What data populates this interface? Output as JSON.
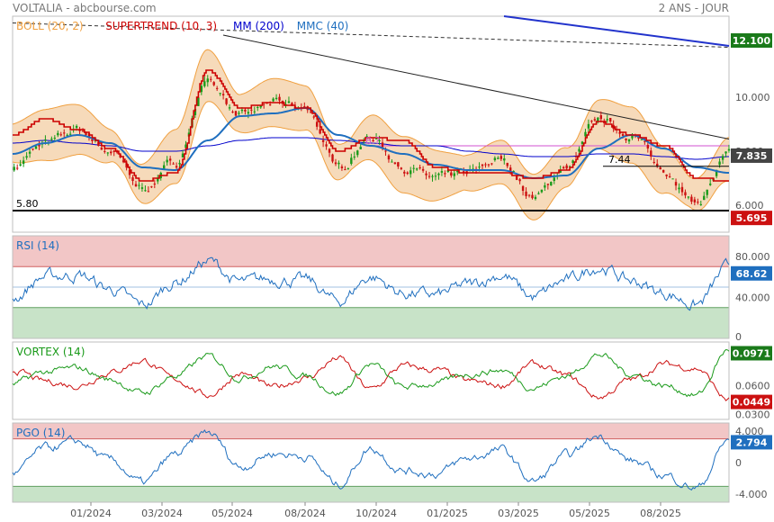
{
  "header": {
    "instrument": "VOLTALIA - abcbourse.com",
    "period": "2 ANS - JOUR"
  },
  "colors": {
    "boll": "#f0a040",
    "boll_fill": "#f5d3ae",
    "supertrend": "#cc0000",
    "mm200": "#0000cc",
    "mmc40": "#1f6fbf",
    "price_up": "#1a9a1a",
    "price_down": "#cc1111",
    "rsi": "#1f6fbf",
    "vortex_plus": "#1a9a1a",
    "vortex_minus": "#cc1111",
    "pgo": "#1f6fbf",
    "overbought_zone": "#f2c6c6",
    "oversold_zone": "#c8e3c8",
    "badge_blue": "#1f6fbf",
    "badge_dark": "#444444",
    "badge_green": "#1a7a1a",
    "badge_red": "#cc1111"
  },
  "x_axis": {
    "tick_labels": [
      "01/2024",
      "03/2024",
      "05/2024",
      "08/2024",
      "10/2024",
      "01/2025",
      "03/2025",
      "05/2025",
      "08/2025"
    ]
  },
  "chart_data": [
    {
      "type": "line",
      "panel": "price",
      "legend": [
        {
          "label": "BOLL (20, 2)",
          "color": "#f0a040"
        },
        {
          "label": "SUPERTREND (10, 3)",
          "color": "#cc0000"
        },
        {
          "label": "MM (200)",
          "color": "#0000cc"
        },
        {
          "label": "MMC (40)",
          "color": "#1f6fbf"
        }
      ],
      "y_ticks": [
        "12.100",
        "10.000",
        "8.000",
        "6.000"
      ],
      "ylim": [
        5.0,
        13.0
      ],
      "x": [
        "11/2023",
        "12/2023",
        "01/2024",
        "02/2024",
        "03/2024",
        "04/2024",
        "05/2024",
        "06/2024",
        "07/2024",
        "08/2024",
        "09/2024",
        "10/2024",
        "11/2024",
        "12/2024",
        "01/2025",
        "02/2025",
        "03/2025",
        "04/2025",
        "05/2025",
        "06/2025",
        "07/2025",
        "08/2025",
        "09/2025"
      ],
      "series": [
        {
          "name": "BOLL (20, 2)",
          "values": [
            8.3,
            8.6,
            8.8,
            8.2,
            6.8,
            7.8,
            10.8,
            9.4,
            9.8,
            9.6,
            7.6,
            8.5,
            7.5,
            7.1,
            7.2,
            7.6,
            6.3,
            7.4,
            9.0,
            8.6,
            7.3,
            6.4,
            7.7
          ]
        },
        {
          "name": "SUPERTREND (10, 3)",
          "values": [
            8.6,
            9.2,
            8.8,
            8.1,
            6.9,
            7.2,
            11.0,
            9.6,
            9.8,
            9.6,
            8.0,
            8.5,
            8.4,
            7.4,
            7.2,
            7.2,
            7.0,
            7.3,
            9.1,
            8.6,
            8.2,
            7.0,
            6.9
          ]
        },
        {
          "name": "MM (200)",
          "values": [
            8.3,
            8.4,
            8.3,
            8.2,
            8.0,
            8.0,
            8.2,
            8.4,
            8.5,
            8.5,
            8.4,
            8.3,
            8.2,
            8.2,
            8.0,
            7.9,
            7.8,
            7.8,
            7.9,
            7.9,
            7.8,
            7.7,
            7.8
          ]
        },
        {
          "name": "MMC (40)",
          "values": [
            7.9,
            8.3,
            8.6,
            8.3,
            7.4,
            7.3,
            8.4,
            9.3,
            9.4,
            9.6,
            8.6,
            8.2,
            7.9,
            7.5,
            7.3,
            7.3,
            7.0,
            7.1,
            8.1,
            8.6,
            8.1,
            7.4,
            7.2
          ]
        },
        {
          "name": "CLOSE",
          "values": [
            7.4,
            8.3,
            8.8,
            8.0,
            6.6,
            7.6,
            10.6,
            9.3,
            9.8,
            9.6,
            7.4,
            8.5,
            7.4,
            7.0,
            7.2,
            7.7,
            6.3,
            7.4,
            9.2,
            8.6,
            7.3,
            6.1,
            7.835
          ]
        }
      ],
      "annotations": [
        {
          "label": "12.100",
          "value": 12.1,
          "badge": "badge_green"
        },
        {
          "label": "7.835",
          "value": 7.835,
          "badge": "badge_dark"
        },
        {
          "label": "5.695",
          "value": 5.695,
          "badge": "badge_red"
        },
        {
          "label": "5.80",
          "value": 5.8
        },
        {
          "label": "7.44",
          "value": 7.44
        },
        {
          "label": "8.?",
          "value": 8.2
        }
      ]
    },
    {
      "type": "line",
      "panel": "rsi",
      "legend": [
        {
          "label": "RSI (14)",
          "color": "#1f6fbf"
        }
      ],
      "y_ticks": [
        "80.000",
        "40.000",
        "0"
      ],
      "ylim": [
        0,
        100
      ],
      "overbought": 70,
      "oversold": 30,
      "x": [
        "11/2023",
        "12/2023",
        "01/2024",
        "02/2024",
        "03/2024",
        "04/2024",
        "05/2024",
        "06/2024",
        "07/2024",
        "08/2024",
        "09/2024",
        "10/2024",
        "11/2024",
        "12/2024",
        "01/2025",
        "02/2025",
        "03/2025",
        "04/2025",
        "05/2025",
        "06/2025",
        "07/2025",
        "08/2025",
        "09/2025"
      ],
      "series": [
        {
          "name": "RSI (14)",
          "values": [
            40,
            60,
            62,
            48,
            32,
            55,
            75,
            54,
            58,
            56,
            36,
            60,
            44,
            42,
            52,
            62,
            40,
            56,
            70,
            56,
            44,
            33,
            68.62
          ]
        }
      ],
      "annotations": [
        {
          "label": "68.62",
          "value": 68.62,
          "badge": "badge_blue"
        }
      ]
    },
    {
      "type": "line",
      "panel": "vortex",
      "legend": [
        {
          "label": "VORTEX (14)",
          "color": "#1a9a1a"
        }
      ],
      "y_ticks": [
        "0.0900",
        "0.0600",
        "0.0300"
      ],
      "ylim": [
        0.025,
        0.105
      ],
      "x": [
        "11/2023",
        "12/2023",
        "01/2024",
        "02/2024",
        "03/2024",
        "04/2024",
        "05/2024",
        "06/2024",
        "07/2024",
        "08/2024",
        "09/2024",
        "10/2024",
        "11/2024",
        "12/2024",
        "01/2025",
        "02/2025",
        "03/2025",
        "04/2025",
        "05/2025",
        "06/2025",
        "07/2025",
        "08/2025",
        "09/2025"
      ],
      "series": [
        {
          "name": "VI+",
          "values": [
            0.062,
            0.074,
            0.078,
            0.066,
            0.052,
            0.07,
            0.09,
            0.068,
            0.08,
            0.07,
            0.052,
            0.082,
            0.058,
            0.062,
            0.072,
            0.076,
            0.058,
            0.07,
            0.092,
            0.072,
            0.06,
            0.05,
            0.0971
          ]
        },
        {
          "name": "VI-",
          "values": [
            0.076,
            0.064,
            0.06,
            0.074,
            0.086,
            0.066,
            0.05,
            0.072,
            0.058,
            0.068,
            0.088,
            0.056,
            0.08,
            0.076,
            0.064,
            0.06,
            0.082,
            0.07,
            0.048,
            0.066,
            0.082,
            0.078,
            0.0449
          ]
        }
      ],
      "annotations": [
        {
          "label": "0.0971",
          "value": 0.0971,
          "badge": "badge_green"
        },
        {
          "label": "0.0449",
          "value": 0.0449,
          "badge": "badge_red"
        }
      ]
    },
    {
      "type": "line",
      "panel": "pgo",
      "legend": [
        {
          "label": "PGO (14)",
          "color": "#1f6fbf"
        }
      ],
      "y_ticks": [
        "4.000",
        "0",
        "-4.000"
      ],
      "ylim": [
        -5.0,
        5.0
      ],
      "overbought": 3.0,
      "oversold": -3.0,
      "x": [
        "11/2023",
        "12/2023",
        "01/2024",
        "02/2024",
        "03/2024",
        "04/2024",
        "05/2024",
        "06/2024",
        "07/2024",
        "08/2024",
        "09/2024",
        "10/2024",
        "11/2024",
        "12/2024",
        "01/2025",
        "02/2025",
        "03/2025",
        "04/2025",
        "05/2025",
        "06/2025",
        "07/2025",
        "08/2025",
        "09/2025"
      ],
      "series": [
        {
          "name": "PGO (14)",
          "values": [
            -1.5,
            1.8,
            2.6,
            0.2,
            -2.6,
            1.0,
            3.8,
            -0.5,
            1.2,
            0.8,
            -2.8,
            1.8,
            -1.0,
            -1.4,
            0.5,
            1.6,
            -2.4,
            0.8,
            3.4,
            0.2,
            -1.6,
            -3.2,
            2.794
          ]
        }
      ],
      "annotations": [
        {
          "label": "2.794",
          "value": 2.794,
          "badge": "badge_blue"
        }
      ]
    }
  ]
}
